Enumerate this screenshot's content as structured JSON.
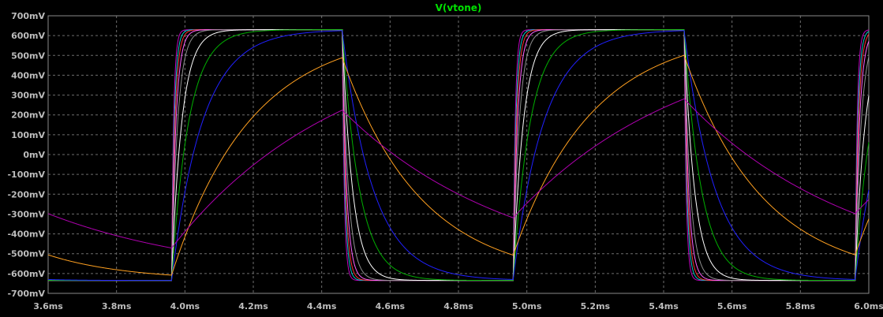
{
  "chart_data": {
    "type": "line",
    "title": "V(vtone)",
    "title_color": "#00e000",
    "xlabel": "",
    "ylabel": "",
    "x_unit": "ms",
    "y_unit": "mV",
    "xlim": [
      3.6,
      6.0
    ],
    "ylim": [
      -700,
      700
    ],
    "grid": true,
    "x_ticks": [
      3.6,
      3.8,
      4.0,
      4.2,
      4.4,
      4.6,
      4.8,
      5.0,
      5.2,
      5.4,
      5.6,
      5.8,
      6.0
    ],
    "x_tick_labels": [
      "3.6ms",
      "3.8ms",
      "4.0ms",
      "4.2ms",
      "4.4ms",
      "4.6ms",
      "4.8ms",
      "5.0ms",
      "5.2ms",
      "5.4ms",
      "5.6ms",
      "5.8ms",
      "6.0ms"
    ],
    "y_ticks": [
      700,
      600,
      500,
      400,
      300,
      200,
      100,
      0,
      -100,
      -200,
      -300,
      -400,
      -500,
      -600,
      -700
    ],
    "y_tick_labels": [
      "700mV",
      "600mV",
      "500mV",
      "400mV",
      "300mV",
      "200mV",
      "100mV",
      "0mV",
      "-100mV",
      "-200mV",
      "-300mV",
      "-400mV",
      "-500mV",
      "-600mV",
      "-700mV"
    ],
    "square_wave": {
      "period_ms": 1.0,
      "rise_edges_ms": [
        3.96,
        4.96,
        5.96
      ],
      "fall_edges_ms": [
        4.46,
        5.46
      ],
      "high_mV": 630,
      "low_mV": -635
    },
    "series": [
      {
        "color": "#c000c0",
        "tau_ms": 0.006
      },
      {
        "color": "#00c8c8",
        "tau_ms": 0.008
      },
      {
        "color": "#ff3030",
        "tau_ms": 0.01
      },
      {
        "color": "#ff60ff",
        "tau_ms": 0.013
      },
      {
        "color": "#909090",
        "tau_ms": 0.018
      },
      {
        "color": "#ffffff",
        "tau_ms": 0.03
      },
      {
        "color": "#00b000",
        "tau_ms": 0.05
      },
      {
        "color": "#2020ff",
        "tau_ms": 0.09
      },
      {
        "color": "#ffa020",
        "tau_ms": 0.23
      },
      {
        "color": "#b000b0",
        "tau_ms": 0.5
      }
    ]
  }
}
